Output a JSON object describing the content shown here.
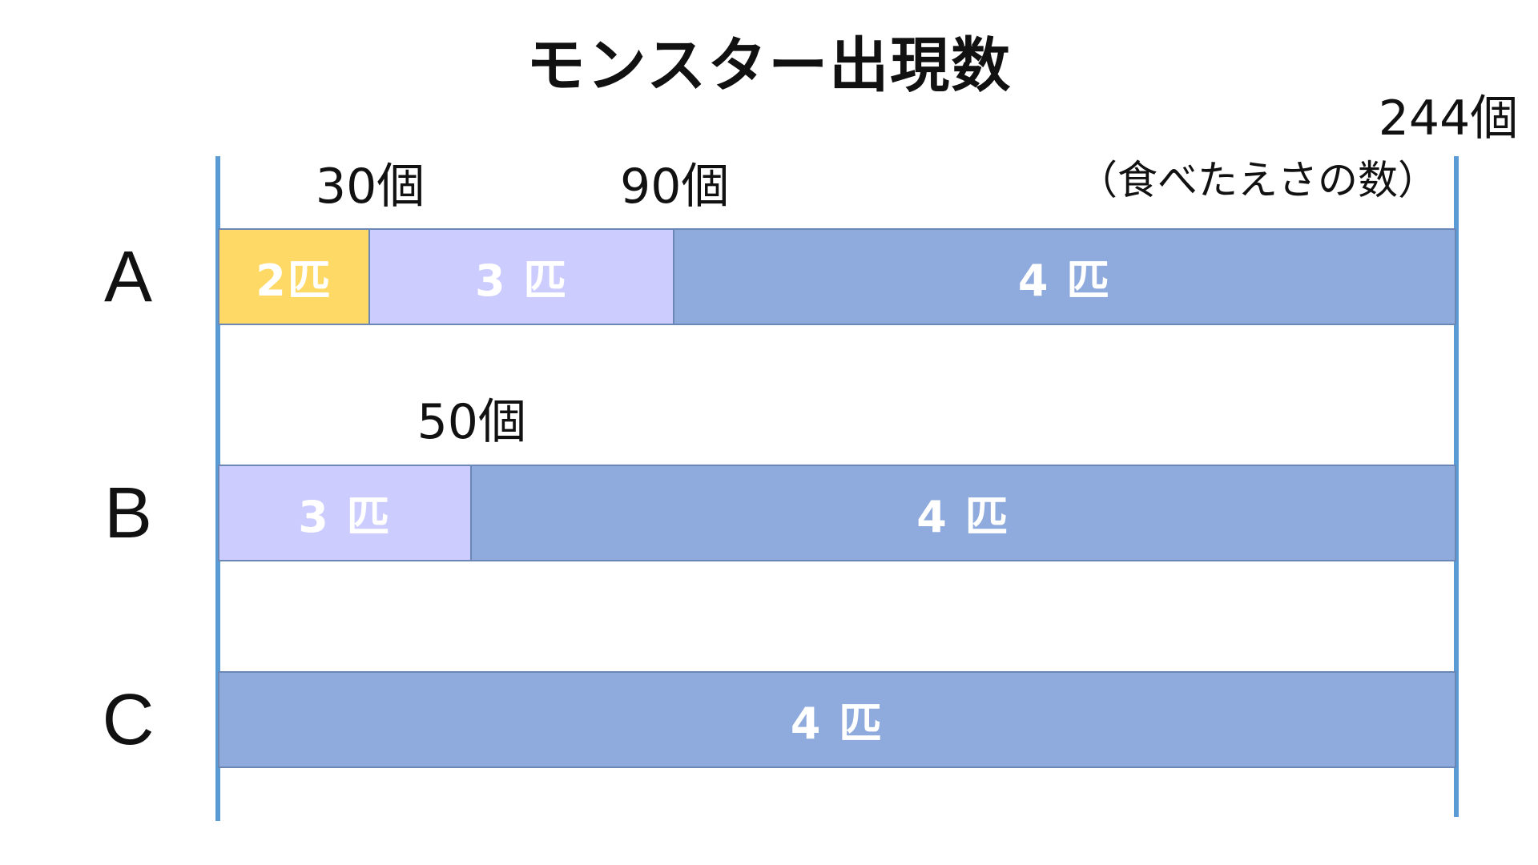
{
  "title": "モンスター出現数",
  "total": {
    "value": 244,
    "label": "244個"
  },
  "unit_note": "（食べたえさの数）",
  "colors": {
    "two": "#ffd966",
    "three": "#ccccff",
    "four": "#8faadc",
    "axis": "#5b9bd5"
  },
  "rows": [
    {
      "label": "A",
      "markers": [
        {
          "value": 30,
          "label": "30個"
        },
        {
          "value": 90,
          "label": "90個"
        }
      ],
      "segments": [
        {
          "from": 0,
          "to": 30,
          "label": "2匹",
          "color": "two"
        },
        {
          "from": 30,
          "to": 90,
          "label": "3 匹",
          "color": "three"
        },
        {
          "from": 90,
          "to": 244,
          "label": "4 匹",
          "color": "four"
        }
      ]
    },
    {
      "label": "B",
      "markers": [
        {
          "value": 50,
          "label": "50個"
        }
      ],
      "segments": [
        {
          "from": 0,
          "to": 50,
          "label": "3 匹",
          "color": "three"
        },
        {
          "from": 50,
          "to": 244,
          "label": "4 匹",
          "color": "four"
        }
      ]
    },
    {
      "label": "C",
      "markers": [],
      "segments": [
        {
          "from": 0,
          "to": 244,
          "label": "4 匹",
          "color": "four"
        }
      ]
    }
  ]
}
